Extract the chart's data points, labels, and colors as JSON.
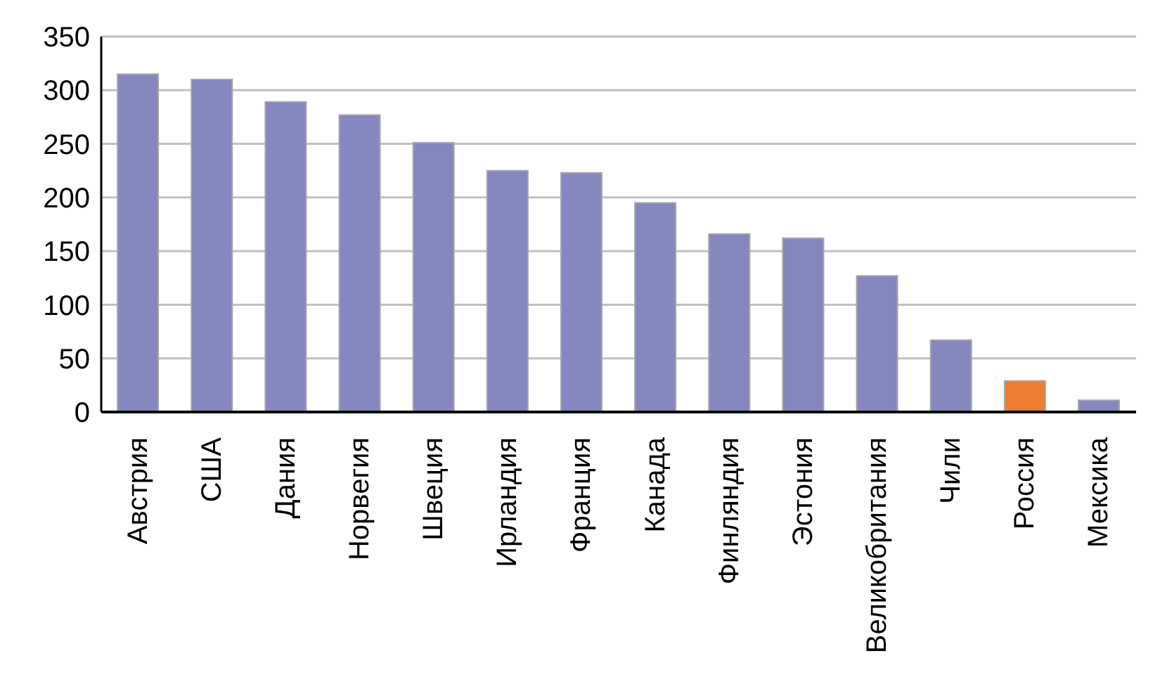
{
  "chart_data": {
    "type": "bar",
    "categories": [
      "Австрия",
      "США",
      "Дания",
      "Норвегия",
      "Швеция",
      "Ирландия",
      "Франция",
      "Канада",
      "Финляндия",
      "Эстония",
      "Великобритания",
      "Чили",
      "Россия",
      "Мексика"
    ],
    "values": [
      315,
      310,
      289,
      277,
      251,
      225,
      223,
      195,
      166,
      162,
      127,
      67,
      29,
      11
    ],
    "colors": [
      "#8488be",
      "#8488be",
      "#8488be",
      "#8488be",
      "#8488be",
      "#8488be",
      "#8488be",
      "#8488be",
      "#8488be",
      "#8488be",
      "#8488be",
      "#8488be",
      "#ed7d31",
      "#8488be"
    ],
    "ylim": [
      0,
      350
    ],
    "yticks": [
      0,
      50,
      100,
      150,
      200,
      250,
      300,
      350
    ],
    "grid": "y"
  }
}
